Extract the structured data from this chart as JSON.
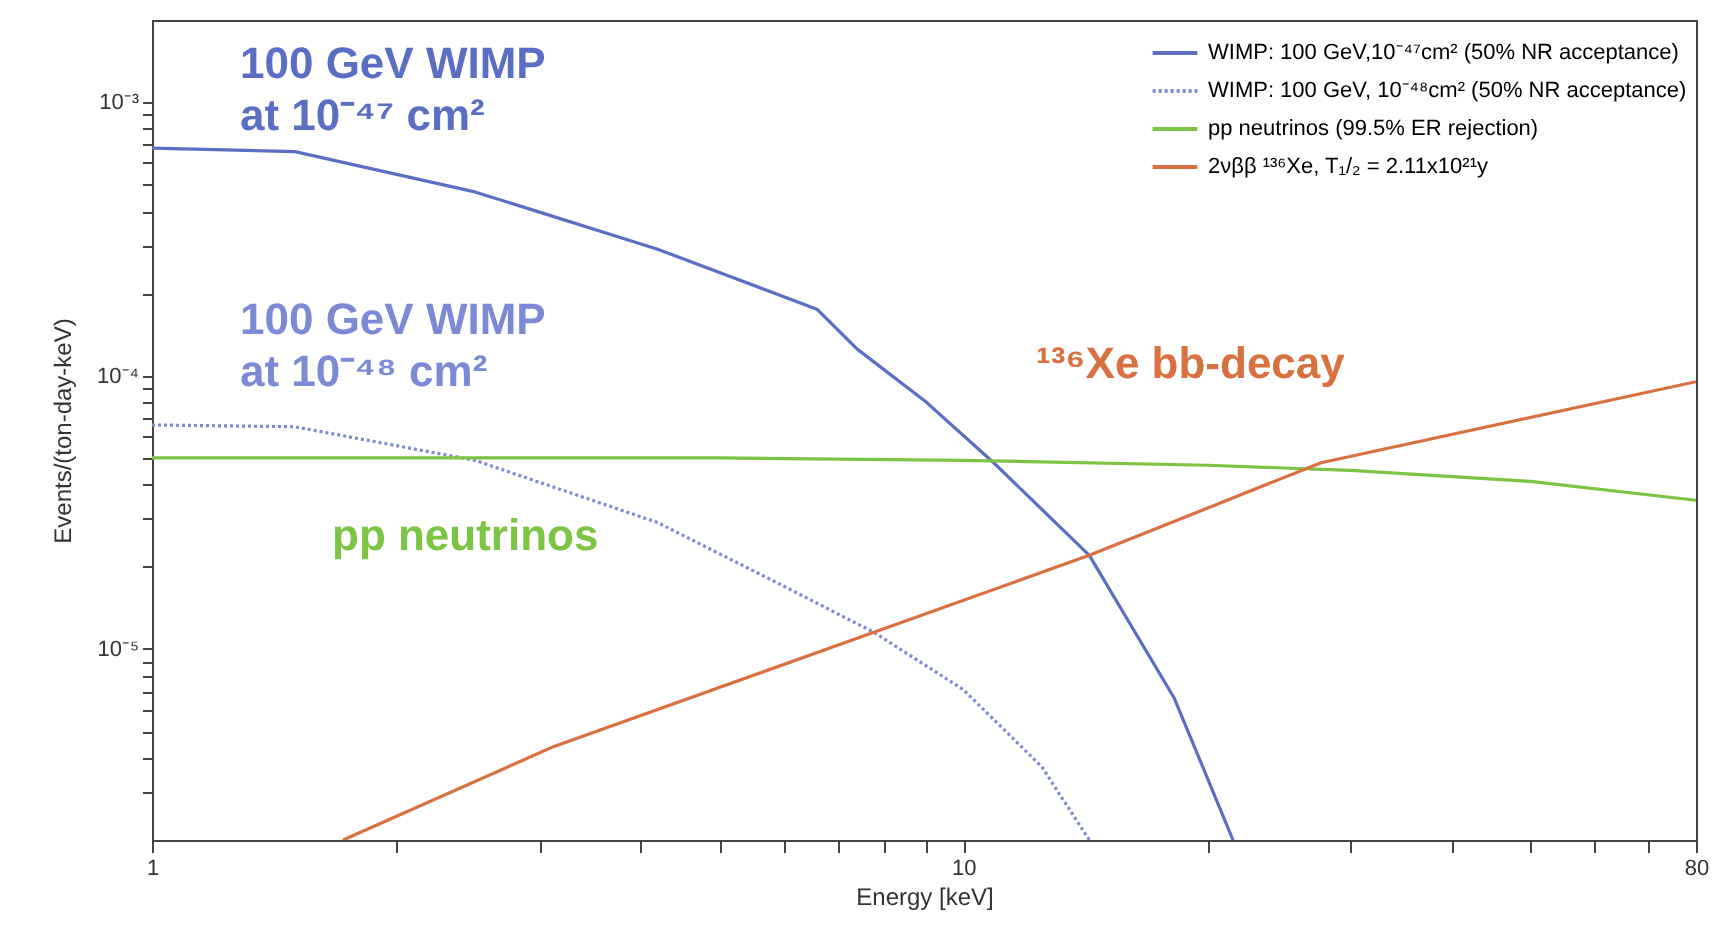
{
  "chart_data": {
    "type": "line",
    "xlabel": "Energy [keV]",
    "ylabel": "Events/(ton-day-keV)",
    "log": "xy",
    "grid": false,
    "legend": "top right",
    "marker": "none",
    "xlim": [
      1,
      80
    ],
    "ylim": [
      2e-06,
      0.002
    ],
    "xticks": [
      1,
      {
        "value": 2,
        "label": null
      },
      {
        "value": 3,
        "label": null
      },
      {
        "value": 4,
        "label": null
      },
      {
        "value": 5,
        "label": null
      },
      {
        "value": 6,
        "label": null
      },
      {
        "value": 7,
        "label": null
      },
      {
        "value": 8,
        "label": null
      },
      {
        "value": 9,
        "label": null
      },
      10,
      {
        "value": 20,
        "label": null
      },
      {
        "value": 30,
        "label": null
      },
      {
        "value": 40,
        "label": null
      },
      {
        "value": 50,
        "label": null
      },
      {
        "value": 60,
        "label": null
      },
      {
        "value": 70,
        "label": null
      },
      80
    ],
    "yticks": [
      {
        "value": 3e-06,
        "label": null
      },
      {
        "value": 4e-06,
        "label": null
      },
      {
        "value": 5e-06,
        "label": null
      },
      {
        "value": 6e-06,
        "label": null
      },
      {
        "value": 7e-06,
        "label": null
      },
      {
        "value": 8e-06,
        "label": null
      },
      {
        "value": 9e-06,
        "label": null
      },
      {
        "value": 1e-05,
        "label": "10⁻⁵"
      },
      {
        "value": 2e-05,
        "label": null
      },
      {
        "value": 3e-05,
        "label": null
      },
      {
        "value": 4e-05,
        "label": null
      },
      {
        "value": 5e-05,
        "label": null
      },
      {
        "value": 6e-05,
        "label": null
      },
      {
        "value": 7e-05,
        "label": null
      },
      {
        "value": 8e-05,
        "label": null
      },
      {
        "value": 9e-05,
        "label": null
      },
      {
        "value": 0.0001,
        "label": "10⁻⁴"
      },
      {
        "value": 0.0002,
        "label": null
      },
      {
        "value": 0.0003,
        "label": null
      },
      {
        "value": 0.0004,
        "label": null
      },
      {
        "value": 0.0005,
        "label": null
      },
      {
        "value": 0.0006,
        "label": null
      },
      {
        "value": 0.0007,
        "label": null
      },
      {
        "value": 0.0008,
        "label": null
      },
      {
        "value": 0.0009,
        "label": null
      },
      {
        "value": 0.001,
        "label": "10⁻³"
      }
    ],
    "series": [
      {
        "name": "WIMP: 100 GeV,10⁻⁴⁷cm² (50% NR acceptance)",
        "color": "#5a6fc4",
        "line_style": "solid",
        "x": [
          1,
          1.5,
          2.5,
          4.2,
          6.6,
          7.4,
          9,
          10.9,
          14.3,
          18.2,
          21.5
        ],
        "values": [
          0.00068,
          0.00066,
          0.00047,
          0.00029,
          0.000175,
          0.000125,
          8e-05,
          4.8e-05,
          2.2e-05,
          6.6e-06,
          2e-06
        ]
      },
      {
        "name": "WIMP: 100 GeV, 10⁻⁴⁸cm² (50% NR acceptance)",
        "color": "#7c8ad6",
        "line_style": "dotted",
        "x": [
          1,
          1.5,
          2.5,
          4.2,
          6,
          7.76,
          10,
          12.5,
          14.3
        ],
        "values": [
          6.6e-05,
          6.5e-05,
          4.9e-05,
          2.9e-05,
          1.7e-05,
          1.15e-05,
          7.1e-06,
          3.7e-06,
          2e-06
        ]
      },
      {
        "name": "pp neutrinos (99.5% ER rejection)",
        "color": "#7cc444",
        "line_style": "solid",
        "x": [
          1,
          3,
          5,
          10,
          20,
          30,
          50,
          80
        ],
        "values": [
          5e-05,
          5e-05,
          5e-05,
          4.9e-05,
          4.7e-05,
          4.5e-05,
          4.1e-05,
          3.5e-05
        ]
      },
      {
        "name": "2νββ ¹³⁶Xe, T₁/₂ = 2.11x10²¹y",
        "color": "#d9703f",
        "line_style": "solid",
        "x": [
          1.72,
          3.13,
          7.76,
          14.3,
          27.6,
          80
        ],
        "values": [
          2e-06,
          4.4e-06,
          1.15e-05,
          2.2e-05,
          4.8e-05,
          9.5e-05
        ]
      }
    ],
    "annotations": [
      "100 GeV WIMP\nat 10⁻⁴⁷ cm²",
      "100 GeV WIMP\nat 10⁻⁴⁸ cm²",
      "pp neutrinos",
      "¹³⁶Xe bb-decay"
    ]
  }
}
